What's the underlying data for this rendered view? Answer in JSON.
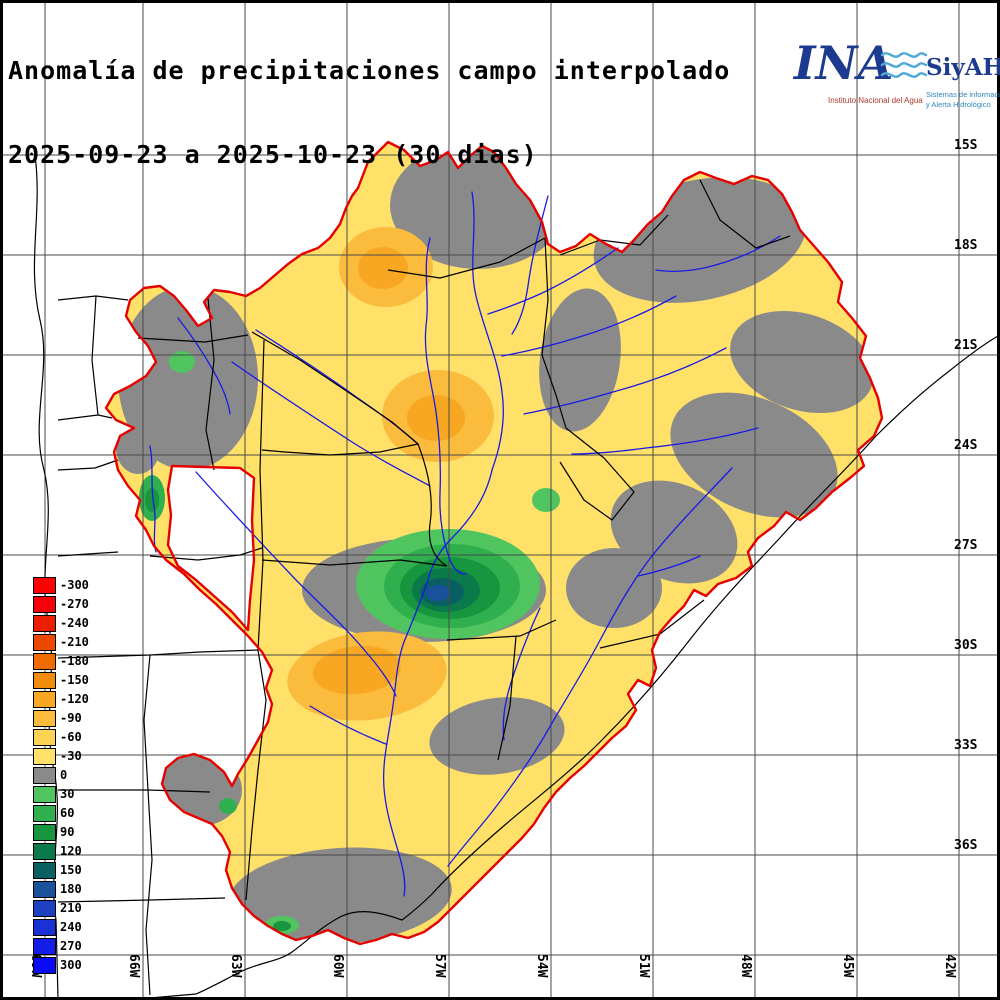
{
  "title": {
    "line1": "Anomalía de precipitaciones campo interpolado",
    "line2": "2025-09-23 a 2025-10-23 (30 dias)"
  },
  "logo": {
    "acronym": "INA",
    "product": "SiyAH",
    "institute": "Instituto Nacional del Agua",
    "tagline_line1": "Sistemas de información",
    "tagline_line2": "y Alerta Hidrológico"
  },
  "colors": {
    "basin": "#E60000",
    "river": "#1A1AE8",
    "border": "#000000",
    "grid": "#4A4A4A"
  },
  "legend": {
    "entries": [
      {
        "value": "-300",
        "color": "#FD0000"
      },
      {
        "value": "-270",
        "color": "#F6000A"
      },
      {
        "value": "-240",
        "color": "#EC1E00"
      },
      {
        "value": "-210",
        "color": "#EC4800"
      },
      {
        "value": "-180",
        "color": "#EF6D00"
      },
      {
        "value": "-150",
        "color": "#F28C0C"
      },
      {
        "value": "-120",
        "color": "#F8A722"
      },
      {
        "value": "-90",
        "color": "#FBBC3E"
      },
      {
        "value": "-60",
        "color": "#FDD355"
      },
      {
        "value": "-30",
        "color": "#FFE068"
      },
      {
        "value": "0",
        "color": "#8A8A8A"
      },
      {
        "value": "30",
        "color": "#50C45F"
      },
      {
        "value": "60",
        "color": "#2FAF4E"
      },
      {
        "value": "90",
        "color": "#17953F"
      },
      {
        "value": "120",
        "color": "#0B7A4A"
      },
      {
        "value": "150",
        "color": "#0A5F63"
      },
      {
        "value": "180",
        "color": "#19519B"
      },
      {
        "value": "210",
        "color": "#1D41C0"
      },
      {
        "value": "240",
        "color": "#1A31D6"
      },
      {
        "value": "270",
        "color": "#131FE8"
      },
      {
        "value": "300",
        "color": "#0A0AF5"
      }
    ]
  },
  "axes": {
    "lat_labels": [
      "15S",
      "18S",
      "21S",
      "24S",
      "27S",
      "30S",
      "33S",
      "36S"
    ],
    "lon_labels": [
      "69W",
      "66W",
      "63W",
      "60W",
      "57W",
      "54W",
      "51W",
      "48W",
      "45W",
      "42W"
    ]
  }
}
